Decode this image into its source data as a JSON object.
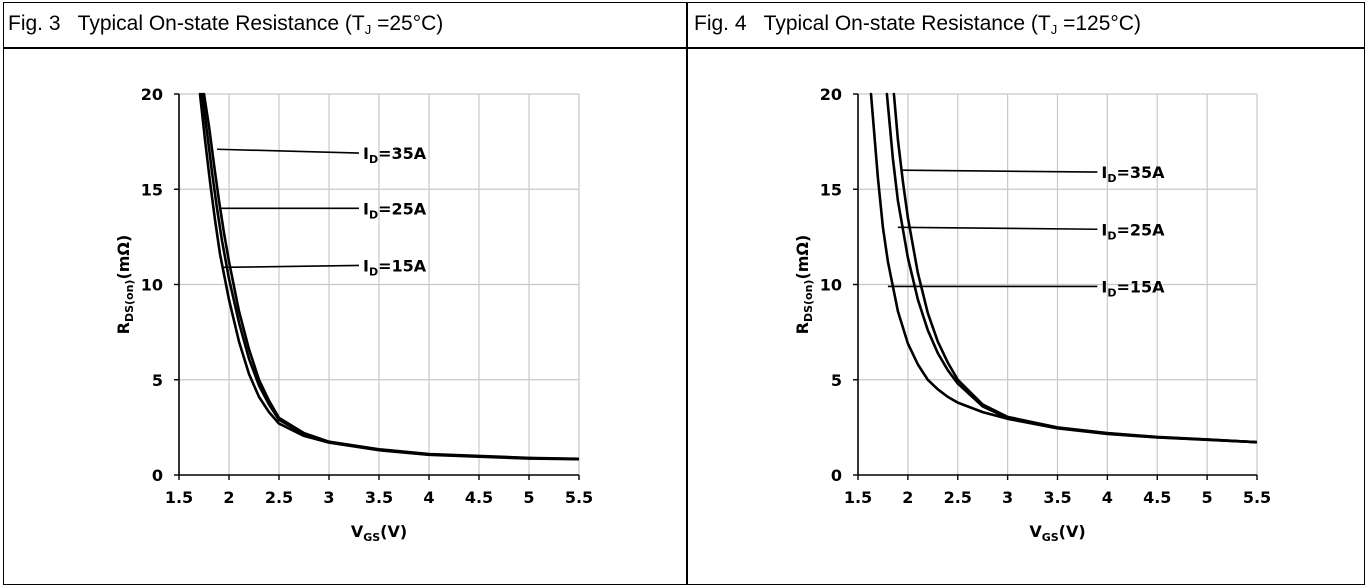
{
  "panels": [
    {
      "fig": "Fig. 3",
      "title_pre": "Typical On-state Resistance (T",
      "title_sub": "J",
      "title_post": " =25°C)"
    },
    {
      "fig": "Fig. 4",
      "title_pre": "Typical On-state Resistance (T",
      "title_sub": "J",
      "title_post": " =125°C)"
    }
  ],
  "chart_data": [
    {
      "type": "line",
      "title": "Fig. 3 Typical On-state Resistance (TJ =25°C)",
      "xlabel": "VGS(V)",
      "ylabel": "RDS(on)(mΩ)",
      "xlim": [
        1.5,
        5.5
      ],
      "ylim": [
        0,
        20
      ],
      "x_ticks": [
        "1.5",
        "2",
        "2.5",
        "3",
        "3.5",
        "4",
        "4.5",
        "5",
        "5.5"
      ],
      "y_ticks": [
        "0",
        "5",
        "10",
        "15",
        "20"
      ],
      "grid": true,
      "series": [
        {
          "name": "ID=35A",
          "x": [
            1.75,
            1.8,
            1.85,
            1.9,
            1.95,
            2.0,
            2.1,
            2.2,
            2.3,
            2.4,
            2.5,
            2.75,
            3.0,
            3.5,
            4.0,
            4.5,
            5.0,
            5.5
          ],
          "y": [
            20,
            18.3,
            16.3,
            14.4,
            12.7,
            11.2,
            8.6,
            6.6,
            5.0,
            3.9,
            3.0,
            2.2,
            1.75,
            1.35,
            1.1,
            1.0,
            0.9,
            0.85
          ]
        },
        {
          "name": "ID=25A",
          "x": [
            1.73,
            1.78,
            1.83,
            1.88,
            1.93,
            2.0,
            2.1,
            2.2,
            2.3,
            2.4,
            2.5,
            2.75,
            3.0,
            3.5,
            4.0,
            4.5,
            5.0,
            5.5
          ],
          "y": [
            20,
            18.0,
            15.9,
            14.0,
            12.3,
            10.3,
            8.0,
            6.1,
            4.7,
            3.7,
            2.9,
            2.15,
            1.72,
            1.33,
            1.08,
            0.98,
            0.88,
            0.84
          ]
        },
        {
          "name": "ID=15A",
          "x": [
            1.71,
            1.76,
            1.81,
            1.86,
            1.91,
            2.0,
            2.1,
            2.2,
            2.3,
            2.4,
            2.5,
            2.75,
            3.0,
            3.5,
            4.0,
            4.5,
            5.0,
            5.5
          ],
          "y": [
            20,
            17.6,
            15.4,
            13.4,
            11.6,
            9.2,
            7.0,
            5.3,
            4.1,
            3.3,
            2.7,
            2.05,
            1.7,
            1.3,
            1.06,
            0.96,
            0.86,
            0.83
          ]
        }
      ],
      "annotations": [
        {
          "main": "I",
          "sub": "D",
          "rest": "=35A",
          "x_start": 1.88,
          "y_start": 17.1,
          "x_end": 3.3,
          "y_end": 16.9
        },
        {
          "main": "I",
          "sub": "D",
          "rest": "=25A",
          "x_start": 1.92,
          "y_start": 14.0,
          "x_end": 3.3,
          "y_end": 14.0
        },
        {
          "main": "I",
          "sub": "D",
          "rest": "=15A",
          "x_start": 1.93,
          "y_start": 10.9,
          "x_end": 3.3,
          "y_end": 11.0
        }
      ]
    },
    {
      "type": "line",
      "title": "Fig. 4 Typical On-state Resistance (TJ =125°C)",
      "xlabel": "VGS(V)",
      "ylabel": "RDS(on)(mΩ)",
      "xlim": [
        1.5,
        5.5
      ],
      "ylim": [
        0,
        20
      ],
      "x_ticks": [
        "1.5",
        "2",
        "2.5",
        "3",
        "3.5",
        "4",
        "4.5",
        "5",
        "5.5"
      ],
      "y_ticks": [
        "0",
        "5",
        "10",
        "15",
        "20"
      ],
      "grid": true,
      "series": [
        {
          "name": "ID=35A",
          "x": [
            1.86,
            1.9,
            1.95,
            2.0,
            2.1,
            2.2,
            2.3,
            2.4,
            2.5,
            2.75,
            3.0,
            3.5,
            4.0,
            4.5,
            5.0,
            5.5
          ],
          "y": [
            20,
            17.6,
            15.4,
            13.5,
            10.6,
            8.5,
            7.0,
            5.9,
            5.0,
            3.7,
            3.05,
            2.5,
            2.2,
            2.0,
            1.87,
            1.72
          ]
        },
        {
          "name": "ID=25A",
          "x": [
            1.79,
            1.85,
            1.9,
            2.0,
            2.1,
            2.2,
            2.3,
            2.4,
            2.5,
            2.75,
            3.0,
            3.5,
            4.0,
            4.5,
            5.0,
            5.5
          ],
          "y": [
            20,
            16.6,
            14.4,
            11.4,
            9.2,
            7.6,
            6.4,
            5.5,
            4.8,
            3.6,
            3.0,
            2.48,
            2.18,
            1.98,
            1.86,
            1.72
          ]
        },
        {
          "name": "ID=15A",
          "x": [
            1.63,
            1.7,
            1.75,
            1.8,
            1.9,
            2.0,
            2.1,
            2.2,
            2.3,
            2.4,
            2.5,
            2.75,
            3.0,
            3.5,
            4.0,
            4.5,
            5.0,
            5.5
          ],
          "y": [
            20,
            15.6,
            13.0,
            11.2,
            8.6,
            6.9,
            5.8,
            5.0,
            4.5,
            4.1,
            3.8,
            3.3,
            2.95,
            2.45,
            2.15,
            1.97,
            1.85,
            1.72
          ]
        }
      ],
      "annotations": [
        {
          "main": "I",
          "sub": "D",
          "rest": "=35A",
          "x_start": 1.95,
          "y_start": 16.0,
          "x_end": 3.9,
          "y_end": 15.9
        },
        {
          "main": "I",
          "sub": "D",
          "rest": "=25A",
          "x_start": 1.9,
          "y_start": 13.0,
          "x_end": 3.9,
          "y_end": 12.9
        },
        {
          "main": "I",
          "sub": "D",
          "rest": "=15A",
          "x_start": 1.8,
          "y_start": 9.9,
          "x_end": 3.9,
          "y_end": 9.9
        }
      ]
    }
  ]
}
